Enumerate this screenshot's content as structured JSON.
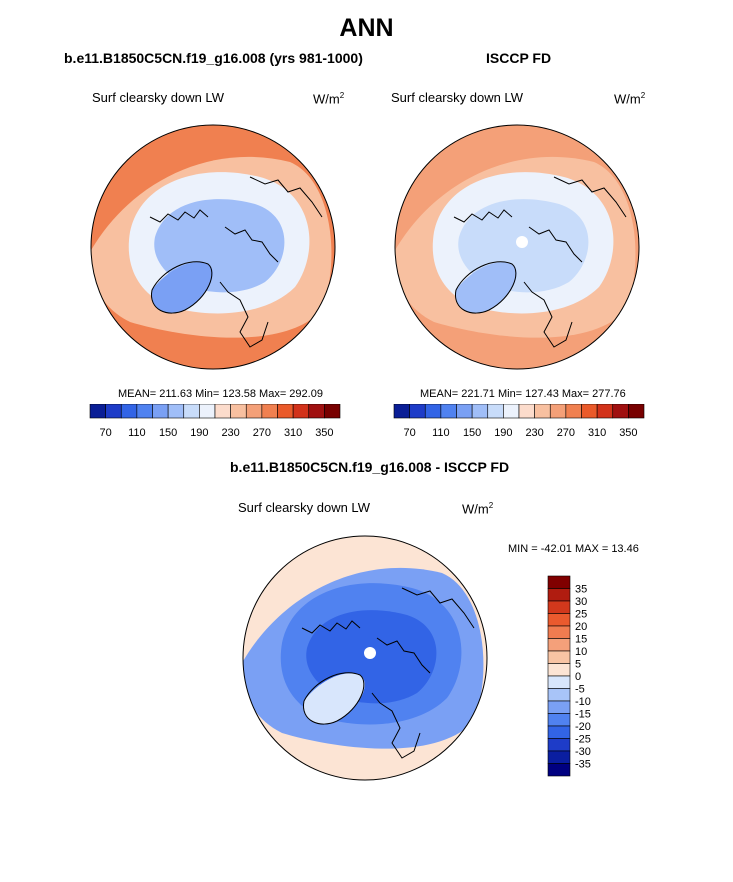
{
  "page": {
    "title": "ANN"
  },
  "panels": [
    {
      "title": "b.e11.B1850C5CN.f19_g16.008 (yrs 981-1000)",
      "variable": "Surf clearsky down LW",
      "units": "W/m",
      "units_exp": "2",
      "stats": "MEAN= 211.63  Min= 123.58  Max= 292.09"
    },
    {
      "title": "ISCCP FD",
      "variable": "Surf clearsky down LW",
      "units": "W/m",
      "units_exp": "2",
      "stats": "MEAN= 221.71  Min= 127.43  Max= 277.76"
    },
    {
      "title": "b.e11.B1850C5CN.f19_g16.008 - ISCCP FD",
      "variable": "Surf clearsky down LW",
      "units": "W/m",
      "units_exp": "2",
      "stats": "MIN = -42.01 MAX =  13.46"
    }
  ],
  "chart_data": [
    {
      "type": "heatmap",
      "projection": "north-polar-stereographic",
      "title": "b.e11.B1850C5CN.f19_g16.008 (yrs 981-1000)",
      "variable": "Surf clearsky down LW",
      "units": "W/m^2",
      "stats": {
        "mean": 211.63,
        "min": 123.58,
        "max": 292.09
      },
      "colorbar": {
        "orientation": "horizontal",
        "levels": [
          70,
          90,
          110,
          130,
          150,
          170,
          190,
          210,
          230,
          250,
          270,
          290,
          310,
          330,
          350
        ],
        "tick_labels": [
          "70",
          "110",
          "150",
          "190",
          "230",
          "270",
          "310",
          "350"
        ],
        "colors": [
          "#0a1e96",
          "#1e3cc8",
          "#3264e6",
          "#5082f0",
          "#7aa0f4",
          "#a0bef8",
          "#c8dcfa",
          "#ecf2fc",
          "#fcdccc",
          "#f8c0a0",
          "#f4a078",
          "#f08050",
          "#ea5a2a",
          "#d2321a",
          "#a01010",
          "#780000"
        ]
      },
      "regions": [
        {
          "region": "pole",
          "value": 165
        },
        {
          "region": "greenland",
          "value": 140
        },
        {
          "region": "arctic-ring",
          "value": 195
        },
        {
          "region": "mid-latitude",
          "value": 245
        },
        {
          "region": "outer-ring",
          "value": 275
        }
      ]
    },
    {
      "type": "heatmap",
      "projection": "north-polar-stereographic",
      "title": "ISCCP FD",
      "variable": "Surf clearsky down LW",
      "units": "W/m^2",
      "stats": {
        "mean": 221.71,
        "min": 127.43,
        "max": 277.76
      },
      "colorbar": {
        "orientation": "horizontal",
        "levels": [
          70,
          90,
          110,
          130,
          150,
          170,
          190,
          210,
          230,
          250,
          270,
          290,
          310,
          330,
          350
        ],
        "tick_labels": [
          "70",
          "110",
          "150",
          "190",
          "230",
          "270",
          "310",
          "350"
        ],
        "colors": [
          "#0a1e96",
          "#1e3cc8",
          "#3264e6",
          "#5082f0",
          "#7aa0f4",
          "#a0bef8",
          "#c8dcfa",
          "#ecf2fc",
          "#fcdccc",
          "#f8c0a0",
          "#f4a078",
          "#f08050",
          "#ea5a2a",
          "#d2321a",
          "#a01010",
          "#780000"
        ]
      },
      "regions": [
        {
          "region": "pole",
          "value": 185
        },
        {
          "region": "greenland",
          "value": 150
        },
        {
          "region": "arctic-ring",
          "value": 205
        },
        {
          "region": "mid-latitude",
          "value": 240
        },
        {
          "region": "outer-ring",
          "value": 265
        }
      ]
    },
    {
      "type": "heatmap",
      "projection": "north-polar-stereographic",
      "title": "b.e11.B1850C5CN.f19_g16.008 - ISCCP FD",
      "variable": "Surf clearsky down LW",
      "units": "W/m^2",
      "stats": {
        "min": -42.01,
        "max": 13.46
      },
      "colorbar": {
        "orientation": "vertical",
        "levels": [
          -35,
          -30,
          -25,
          -20,
          -15,
          -10,
          -5,
          0,
          5,
          10,
          15,
          20,
          25,
          30,
          35
        ],
        "tick_labels": [
          "35",
          "30",
          "25",
          "20",
          "15",
          "10",
          "5",
          "0",
          "-5",
          "-10",
          "-15",
          "-20",
          "-25",
          "-30",
          "-35"
        ],
        "colors": [
          "#000080",
          "#0a1ea0",
          "#1e3cc8",
          "#3264e6",
          "#5082f0",
          "#7aa0f4",
          "#a8c4f8",
          "#d8e6fc",
          "#fce4d4",
          "#f8c4a4",
          "#f4a07a",
          "#f07c50",
          "#ea5a2e",
          "#d2381c",
          "#b01c10",
          "#800000"
        ]
      },
      "regions": [
        {
          "region": "pole",
          "value": -25
        },
        {
          "region": "greenland",
          "value": -5
        },
        {
          "region": "arctic-ring",
          "value": -20
        },
        {
          "region": "mid-latitude",
          "value": -12
        },
        {
          "region": "outer-ring",
          "value": 3
        }
      ]
    }
  ]
}
